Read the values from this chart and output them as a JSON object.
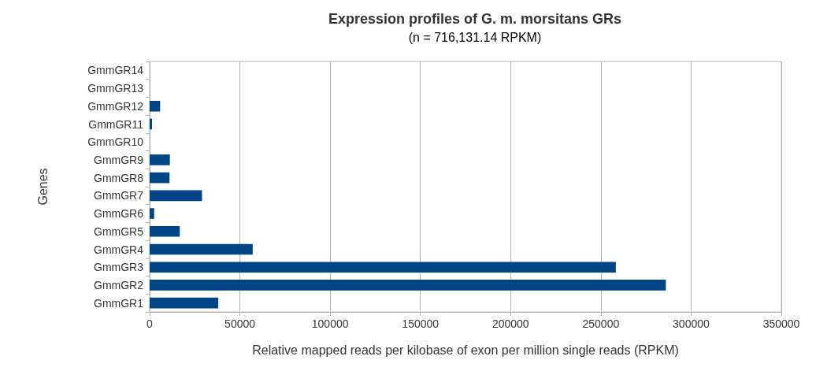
{
  "chart_data": {
    "type": "bar",
    "orientation": "horizontal",
    "title": "Expression profiles of G. m. morsitans GRs",
    "subtitle": "(n = 716,131.14 RPKM)",
    "xlabel": "Relative mapped reads per kilobase of exon per million single reads (RPKM)",
    "ylabel": "Genes",
    "categories": [
      "GmmGR14",
      "GmmGR13",
      "GmmGR12",
      "GmmGR11",
      "GmmGR10",
      "GmmGR9",
      "GmmGR8",
      "GmmGR7",
      "GmmGR6",
      "GmmGR5",
      "GmmGR4",
      "GmmGR3",
      "GmmGR2",
      "GmmGR1"
    ],
    "values": [
      0,
      0,
      5800,
      1300,
      0,
      11200,
      11000,
      29000,
      2500,
      16700,
      57100,
      258300,
      286000,
      38000
    ],
    "color": "#004586",
    "xlim": [
      0,
      350000
    ],
    "xticks": [
      0,
      50000,
      100000,
      150000,
      200000,
      250000,
      300000,
      350000
    ],
    "grid": "x"
  }
}
